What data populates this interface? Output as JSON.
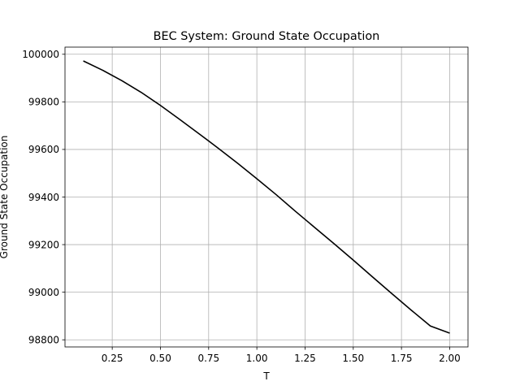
{
  "chart_data": {
    "type": "line",
    "title": "BEC System: Ground State Occupation",
    "xlabel": "T",
    "ylabel": "Ground State Occupation",
    "xlim": [
      0.005,
      2.095
    ],
    "ylim": [
      98770,
      100030
    ],
    "grid": true,
    "x_ticks": [
      0.25,
      0.5,
      0.75,
      1.0,
      1.25,
      1.5,
      1.75,
      2.0
    ],
    "x_tick_labels": [
      "0.25",
      "0.50",
      "0.75",
      "1.00",
      "1.25",
      "1.50",
      "1.75",
      "2.00"
    ],
    "y_ticks": [
      98800,
      99000,
      99200,
      99400,
      99600,
      99800,
      100000
    ],
    "y_tick_labels": [
      "98800",
      "99000",
      "99200",
      "99400",
      "99600",
      "99800",
      "100000"
    ],
    "series": [
      {
        "color": "#000000",
        "x": [
          0.1,
          0.2,
          0.3,
          0.4,
          0.5,
          0.6,
          0.7,
          0.8,
          0.9,
          1.0,
          1.1,
          1.2,
          1.3,
          1.4,
          1.5,
          1.6,
          1.7,
          1.8,
          1.9,
          2.0
        ],
        "y": [
          99972,
          99933,
          99889,
          99840,
          99785,
          99726,
          99666,
          99605,
          99542,
          99477,
          99410,
          99340,
          99272,
          99204,
          99135,
          99064,
          98994,
          98925,
          98858,
          98828
        ]
      }
    ]
  }
}
